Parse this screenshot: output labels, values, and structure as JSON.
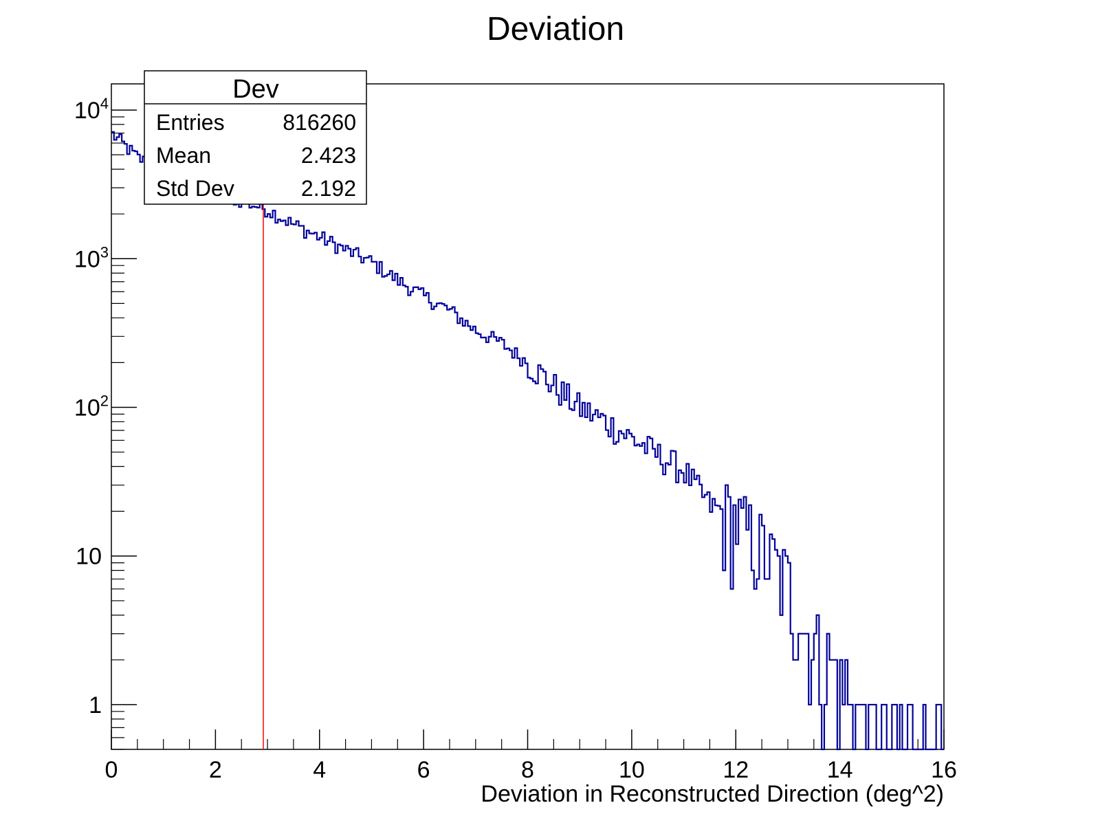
{
  "chart_data": {
    "type": "histogram",
    "title": "Deviation",
    "xlabel": "Deviation in Reconstructed Direction (deg^2)",
    "ylabel": "",
    "xlim": [
      0,
      16
    ],
    "ylim": [
      0.5,
      15000
    ],
    "y_scale": "log",
    "x_ticks": [
      0,
      2,
      4,
      6,
      8,
      10,
      12,
      14,
      16
    ],
    "x_tick_labels": [
      "0",
      "2",
      "4",
      "6",
      "8",
      "10",
      "12",
      "14",
      "16"
    ],
    "y_ticks": [
      1,
      10,
      100,
      1000,
      10000
    ],
    "y_tick_labels": [
      {
        "base": "1",
        "exp": ""
      },
      {
        "base": "10",
        "exp": ""
      },
      {
        "base": "10",
        "exp": "2"
      },
      {
        "base": "10",
        "exp": "3"
      },
      {
        "base": "10",
        "exp": "4"
      }
    ],
    "line_color": "#000099",
    "marker_color": "#ff0000",
    "marker_line_x": 2.92,
    "stats_box": {
      "name": "Dev",
      "rows": [
        {
          "label": "Entries",
          "value": "816260"
        },
        {
          "label": "Mean",
          "value": "2.423"
        },
        {
          "label": "Std Dev",
          "value": "2.192"
        }
      ]
    },
    "series": [
      {
        "bin_width": 0.05,
        "x": [
          0.0,
          0.5,
          1.0,
          1.5,
          2.0,
          2.5,
          3.0,
          3.5,
          4.0,
          4.5,
          5.0,
          5.5,
          6.0,
          6.5,
          7.0,
          7.5,
          8.0,
          8.5,
          9.0,
          9.5,
          10.0,
          10.5,
          11.0,
          11.5,
          12.0,
          12.5,
          13.0,
          13.5,
          14.0,
          14.5,
          15.0,
          15.5,
          16.0
        ],
        "values": [
          7000,
          4800,
          3900,
          3300,
          2850,
          2450,
          2150,
          1700,
          1400,
          1150,
          950,
          720,
          560,
          450,
          330,
          270,
          200,
          140,
          100,
          80,
          62,
          48,
          38,
          22,
          18,
          12,
          7,
          3,
          2,
          1.2,
          0.9,
          0.8,
          0.7
        ]
      }
    ]
  }
}
